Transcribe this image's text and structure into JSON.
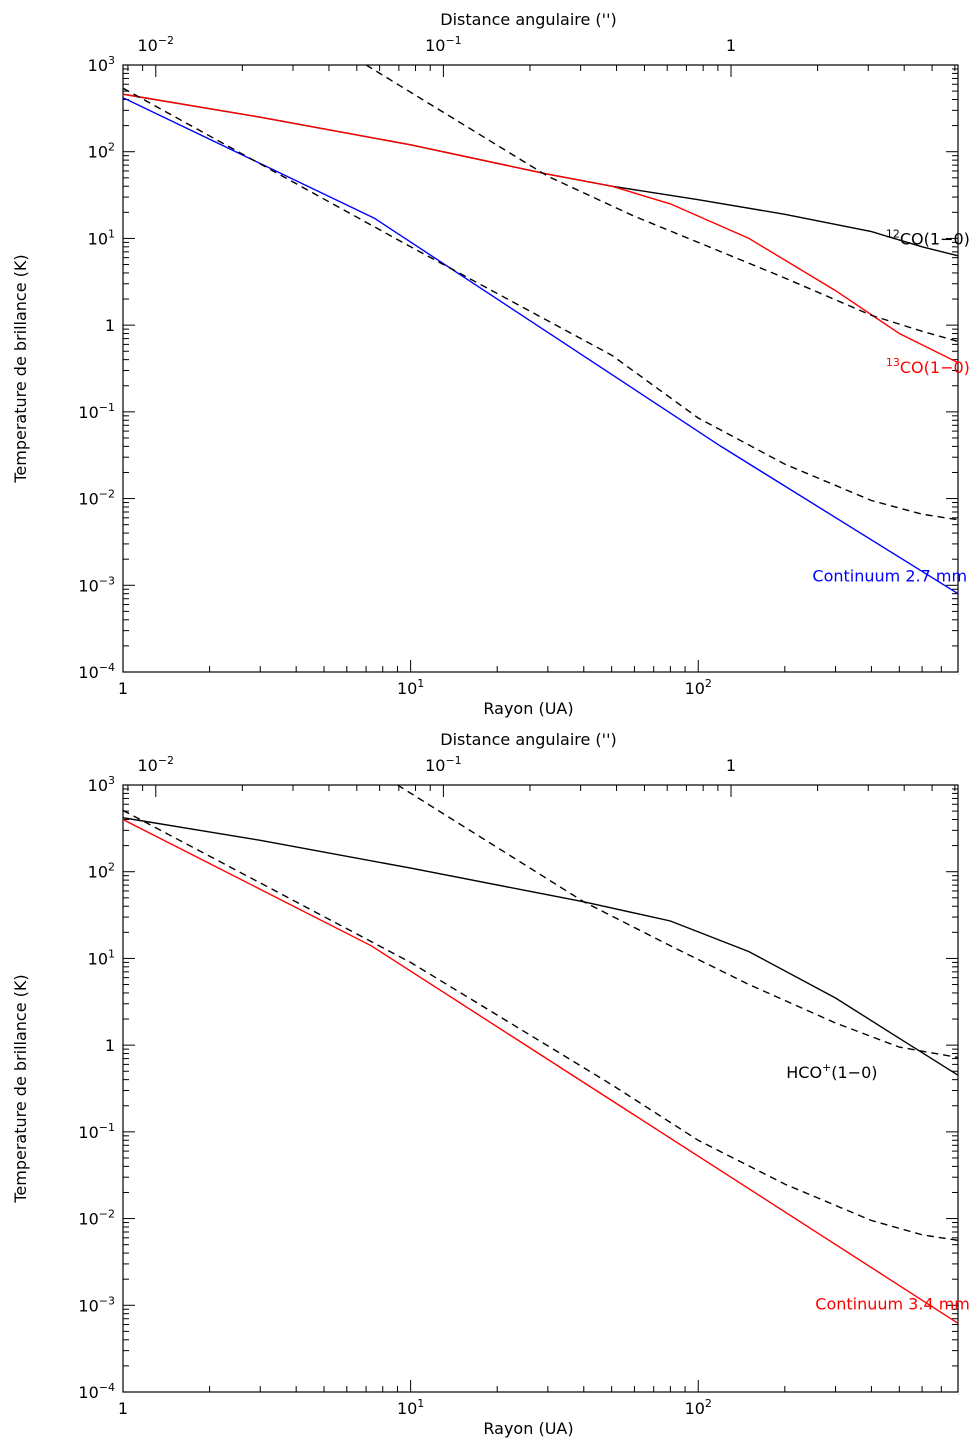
{
  "chart_data": [
    {
      "type": "line",
      "xlabel": "Rayon (UA)",
      "ylabel": "Temperature de brillance (K)",
      "top_xlabel": "Distance angulaire ('')",
      "xscale": "log",
      "yscale": "log",
      "xlim": [
        1,
        800
      ],
      "ylim": [
        0.0001,
        1000
      ],
      "x_ticks": [
        {
          "value": 1,
          "base": "1",
          "exp": ""
        },
        {
          "value": 10,
          "base": "10",
          "exp": "1"
        },
        {
          "value": 100,
          "base": "10",
          "exp": "2"
        }
      ],
      "top_x_ticks": [
        {
          "value": 1.3,
          "base": "10",
          "exp": "−2"
        },
        {
          "value": 13,
          "base": "10",
          "exp": "−1"
        },
        {
          "value": 130,
          "base": "1",
          "exp": ""
        }
      ],
      "y_ticks": [
        {
          "value": 1000,
          "base": "10",
          "exp": "3"
        },
        {
          "value": 100,
          "base": "10",
          "exp": "2"
        },
        {
          "value": 10,
          "base": "10",
          "exp": "1"
        },
        {
          "value": 1,
          "base": "1",
          "exp": ""
        },
        {
          "value": 0.1,
          "base": "10",
          "exp": "−1"
        },
        {
          "value": 0.01,
          "base": "10",
          "exp": "−2"
        },
        {
          "value": 0.001,
          "base": "10",
          "exp": "−3"
        },
        {
          "value": 0.0001,
          "base": "10",
          "exp": "−4"
        }
      ],
      "series": [
        {
          "sup": "12",
          "name": "CO(1−0)",
          "color": "#000000",
          "style": "solid",
          "label_at": [
            880,
            8.5
          ],
          "points": [
            [
              1,
              460
            ],
            [
              3,
              250
            ],
            [
              10,
              120
            ],
            [
              30,
              55
            ],
            [
              50,
              40
            ],
            [
              100,
              28
            ],
            [
              200,
              19
            ],
            [
              400,
              12
            ],
            [
              600,
              8
            ],
            [
              800,
              6.3
            ]
          ]
        },
        {
          "sup": "13",
          "name": "CO(1−0)",
          "color": "#ff0000",
          "style": "solid",
          "label_at": [
            880,
            0.28
          ],
          "points": [
            [
              1,
              460
            ],
            [
              3,
              250
            ],
            [
              10,
              120
            ],
            [
              30,
              55
            ],
            [
              50,
              40
            ],
            [
              80,
              25
            ],
            [
              150,
              10
            ],
            [
              300,
              2.5
            ],
            [
              500,
              0.8
            ],
            [
              800,
              0.37
            ]
          ]
        },
        {
          "sup": "",
          "name": "Continuum 2.7 mm",
          "color": "#0000ff",
          "style": "solid",
          "label_at": [
            860,
            0.0011
          ],
          "points": [
            [
              1,
              420
            ],
            [
              7.5,
              17
            ],
            [
              120,
              0.04
            ],
            [
              800,
              0.0008
            ]
          ]
        },
        {
          "sup": "",
          "name": "",
          "color": "#000000",
          "style": "dashed",
          "points": [
            [
              7,
              1000
            ],
            [
              30,
              52
            ],
            [
              60,
              18
            ],
            [
              100,
              9
            ],
            [
              200,
              3.5
            ],
            [
              400,
              1.3
            ],
            [
              600,
              0.85
            ],
            [
              800,
              0.65
            ]
          ]
        },
        {
          "sup": "",
          "name": "",
          "color": "#000000",
          "style": "dashed",
          "points": [
            [
              1,
              540
            ],
            [
              10,
              8
            ],
            [
              50,
              0.45
            ],
            [
              100,
              0.085
            ],
            [
              200,
              0.025
            ],
            [
              400,
              0.0095
            ],
            [
              600,
              0.0066
            ],
            [
              800,
              0.0057
            ]
          ]
        }
      ]
    },
    {
      "type": "line",
      "xlabel": "Rayon (UA)",
      "ylabel": "Temperature de brillance (K)",
      "top_xlabel": "Distance angulaire ('')",
      "xscale": "log",
      "yscale": "log",
      "xlim": [
        1,
        800
      ],
      "ylim": [
        0.0001,
        1000
      ],
      "x_ticks": [
        {
          "value": 1,
          "base": "1",
          "exp": ""
        },
        {
          "value": 10,
          "base": "10",
          "exp": "1"
        },
        {
          "value": 100,
          "base": "10",
          "exp": "2"
        }
      ],
      "top_x_ticks": [
        {
          "value": 1.3,
          "base": "10",
          "exp": "−2"
        },
        {
          "value": 13,
          "base": "10",
          "exp": "−1"
        },
        {
          "value": 130,
          "base": "1",
          "exp": ""
        }
      ],
      "y_ticks": [
        {
          "value": 1000,
          "base": "10",
          "exp": "3"
        },
        {
          "value": 100,
          "base": "10",
          "exp": "2"
        },
        {
          "value": 10,
          "base": "10",
          "exp": "1"
        },
        {
          "value": 1,
          "base": "1",
          "exp": ""
        },
        {
          "value": 0.1,
          "base": "10",
          "exp": "−1"
        },
        {
          "value": 0.01,
          "base": "10",
          "exp": "−2"
        },
        {
          "value": 0.001,
          "base": "10",
          "exp": "−3"
        },
        {
          "value": 0.0001,
          "base": "10",
          "exp": "−4"
        }
      ],
      "series": [
        {
          "sup": "",
          "name": "HCO<sup>+</sup>(1−0)",
          "display_parts": [
            "HCO",
            "+",
            "(1−0)"
          ],
          "color": "#000000",
          "style": "solid",
          "label_at": [
            420,
            0.42
          ],
          "points": [
            [
              1,
              420
            ],
            [
              3,
              230
            ],
            [
              10,
              110
            ],
            [
              40,
              45
            ],
            [
              80,
              27
            ],
            [
              150,
              12
            ],
            [
              300,
              3.5
            ],
            [
              500,
              1.2
            ],
            [
              800,
              0.45
            ]
          ]
        },
        {
          "sup": "",
          "name": "Continuum 3.4 mm",
          "color": "#ff0000",
          "style": "solid",
          "label_at": [
            880,
            0.0009
          ],
          "points": [
            [
              1,
              400
            ],
            [
              7.3,
              14
            ],
            [
              800,
              0.00062
            ]
          ]
        },
        {
          "sup": "",
          "name": "",
          "color": "#000000",
          "style": "dashed",
          "points": [
            [
              9,
              1000
            ],
            [
              40,
              45
            ],
            [
              80,
              14
            ],
            [
              150,
              5
            ],
            [
              300,
              1.8
            ],
            [
              500,
              0.95
            ],
            [
              800,
              0.72
            ]
          ]
        },
        {
          "sup": "",
          "name": "",
          "color": "#000000",
          "style": "dashed",
          "points": [
            [
              1,
              510
            ],
            [
              10,
              9
            ],
            [
              50,
              0.35
            ],
            [
              100,
              0.08
            ],
            [
              200,
              0.025
            ],
            [
              400,
              0.0095
            ],
            [
              600,
              0.0065
            ],
            [
              800,
              0.0056
            ]
          ]
        }
      ]
    }
  ]
}
